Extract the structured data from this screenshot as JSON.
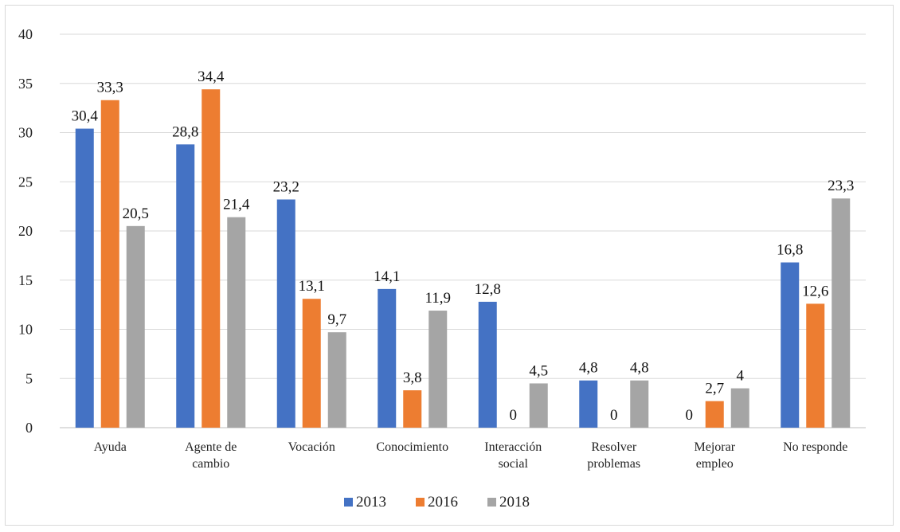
{
  "chart_data": {
    "type": "bar",
    "categories": [
      [
        "Ayuda"
      ],
      [
        "Agente de",
        "cambio"
      ],
      [
        "Vocación"
      ],
      [
        "Conocimiento"
      ],
      [
        "Interacción",
        "social"
      ],
      [
        "Resolver",
        "problemas"
      ],
      [
        "Mejorar",
        "empleo"
      ],
      [
        "No responde"
      ]
    ],
    "series": [
      {
        "name": "2013",
        "color": "#4472c4",
        "values": [
          30.4,
          28.8,
          23.2,
          14.1,
          12.8,
          4.8,
          0,
          16.8
        ],
        "labels": [
          "30,4",
          "28,8",
          "23,2",
          "14,1",
          "12,8",
          "4,8",
          "0",
          "16,8"
        ]
      },
      {
        "name": "2016",
        "color": "#ed7d31",
        "values": [
          33.3,
          34.4,
          13.1,
          3.8,
          0,
          0,
          2.7,
          12.6
        ],
        "labels": [
          "33,3",
          "34,4",
          "13,1",
          "3,8",
          "0",
          "0",
          "2,7",
          "12,6"
        ]
      },
      {
        "name": "2018",
        "color": "#a5a5a5",
        "values": [
          20.5,
          21.4,
          9.7,
          11.9,
          4.5,
          4.8,
          4,
          23.3
        ],
        "labels": [
          "20,5",
          "21,4",
          "9,7",
          "11,9",
          "4,5",
          "4,8",
          "4",
          "23,3"
        ]
      }
    ],
    "ylim": [
      0,
      40
    ],
    "yticks": [
      0,
      5,
      10,
      15,
      20,
      25,
      30,
      35,
      40
    ],
    "grid": true,
    "legend": "bottom-center",
    "title": "",
    "xlabel": "",
    "ylabel": ""
  }
}
